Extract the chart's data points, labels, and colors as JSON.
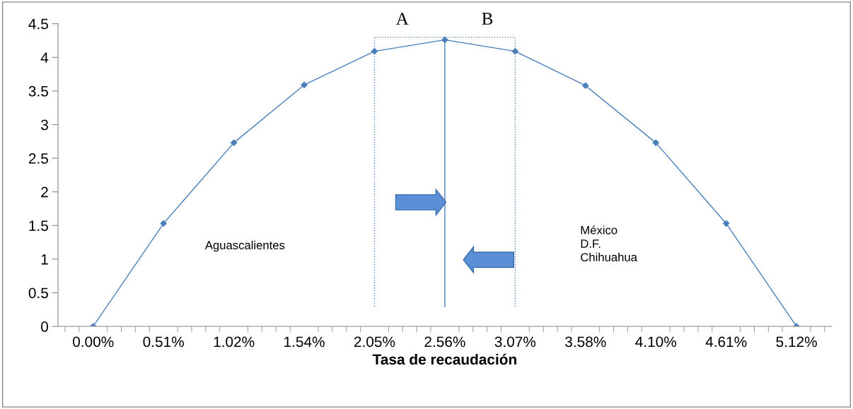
{
  "chart_data": {
    "type": "line",
    "xlabel": "Tasa de recaudación",
    "categories": [
      "0.00%",
      "0.51%",
      "1.02%",
      "1.54%",
      "2.05%",
      "2.56%",
      "3.07%",
      "3.58%",
      "4.10%",
      "4.61%",
      "5.12%"
    ],
    "series": [
      {
        "color": "#4a7ebb",
        "values": [
          0,
          1.53,
          2.73,
          3.59,
          4.09,
          4.26,
          4.09,
          3.58,
          2.73,
          1.53,
          0
        ]
      }
    ],
    "ylim": [
      0,
      4.5
    ],
    "yticks": [
      0,
      0.5,
      1,
      1.5,
      2,
      2.5,
      3,
      3.5,
      4,
      4.5
    ],
    "marker": "diamond",
    "line_style": "solid",
    "grid": false,
    "legend": false,
    "ref_lines": [
      {
        "axis": "x",
        "value": "2.05%",
        "color": "#4f81bd",
        "line_style": "dotted"
      },
      {
        "axis": "x",
        "value": "2.56%",
        "color": "#4a7ebb",
        "line_style": "solid"
      },
      {
        "axis": "x",
        "value": "3.07%",
        "color": "#4f81bd",
        "line_style": "dotted"
      }
    ],
    "annotations": [
      "A",
      "B",
      "Aguascalientes",
      "México\nD.F.\nChihuahua"
    ]
  }
}
